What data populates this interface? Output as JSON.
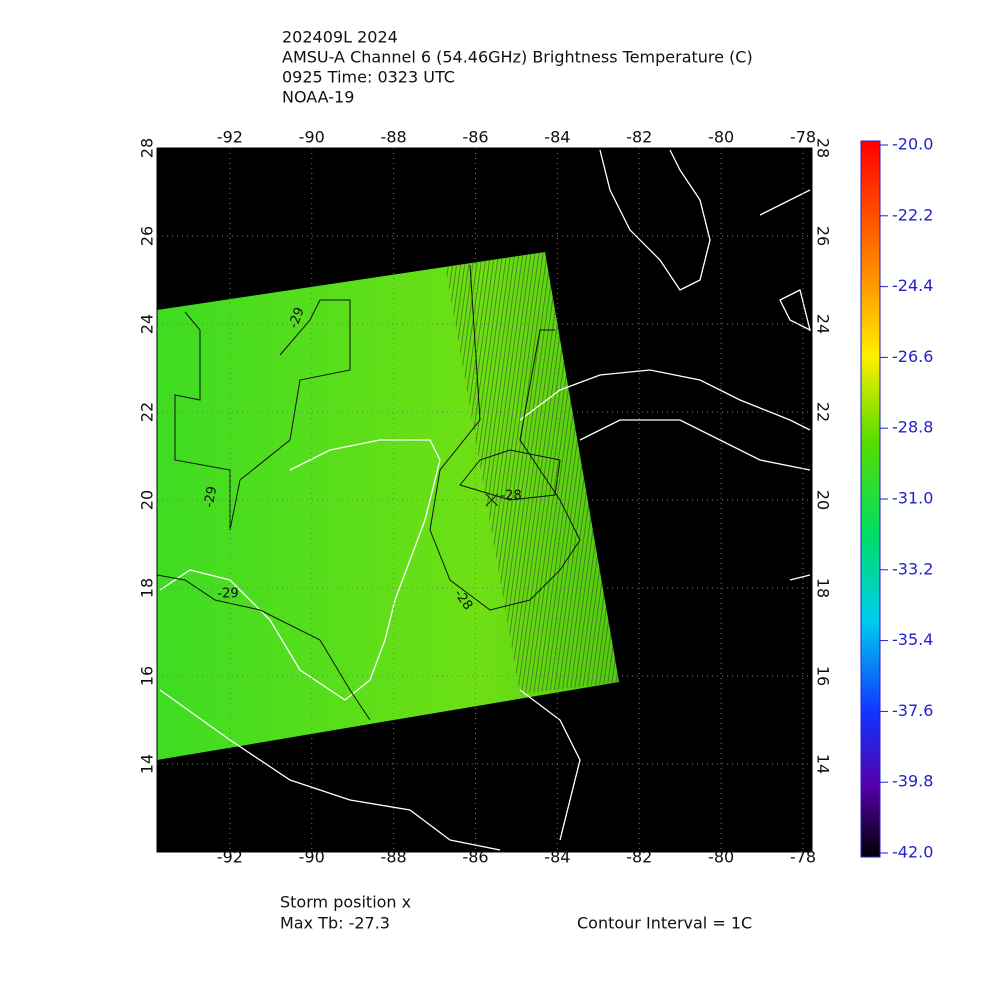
{
  "title_lines": [
    "202409L 2024",
    "AMSU-A Channel 6 (54.46GHz) Brightness Temperature (C)",
    "0925 Time: 0323 UTC",
    "NOAA-19"
  ],
  "map": {
    "lonlim": [
      -93.78,
      -77.78
    ],
    "latlim": [
      12,
      28
    ],
    "lon_ticks": [
      -92,
      -90,
      -88,
      -86,
      -84,
      -82,
      -80,
      -78
    ],
    "lat_ticks": [
      14,
      16,
      18,
      20,
      22,
      24,
      26,
      28
    ],
    "grid": true,
    "storm_position": {
      "lon": -85.6,
      "lat": 20.0
    },
    "contour_labels": [
      "-29",
      "-29",
      "-29",
      "-28",
      "-28"
    ]
  },
  "colorbar": {
    "lim": [
      -42.0,
      -20.0
    ],
    "ticks": [
      {
        "value": -20.0,
        "label": "-20.0"
      },
      {
        "value": -22.2,
        "label": "-22.2"
      },
      {
        "value": -24.4,
        "label": "-24.4"
      },
      {
        "value": -26.6,
        "label": "-26.6"
      },
      {
        "value": -28.8,
        "label": "-28.8"
      },
      {
        "value": -31.0,
        "label": "-31.0"
      },
      {
        "value": -33.2,
        "label": "-33.2"
      },
      {
        "value": -35.4,
        "label": "-35.4"
      },
      {
        "value": -37.6,
        "label": "-37.6"
      },
      {
        "value": -39.8,
        "label": "-39.8"
      },
      {
        "value": -42.0,
        "label": "-42.0"
      }
    ]
  },
  "footer": {
    "storm_label": "Storm position x",
    "max_tb": "Max Tb: -27.3",
    "contour_interval": "Contour Interval = 1C"
  }
}
